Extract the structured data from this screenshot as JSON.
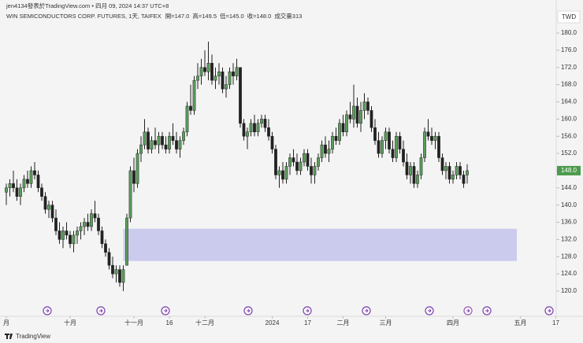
{
  "header": {
    "author_line": "jen4134發表於TradingView.com • 四月 09, 2024 14:37 UTC+8",
    "symbol": "WIN SEMICONDUCTORS CORP. FUTURES, 1天, TAIFEX",
    "ohlc": [
      "開=147.0",
      "高=149.5",
      "低=145.0",
      "收=148.0",
      "成交量313"
    ],
    "currency": "TWD",
    "brand": "TradingView"
  },
  "chart_data": {
    "type": "candlestick",
    "up_color": "#5b9e5b",
    "down_color": "#222222",
    "ylim": [
      118.5,
      183
    ],
    "yticks": [
      {
        "value": 120,
        "label": "120.0"
      },
      {
        "value": 124,
        "label": "124.0"
      },
      {
        "value": 128,
        "label": "128.0"
      },
      {
        "value": 132,
        "label": "132.0"
      },
      {
        "value": 136,
        "label": "136.0"
      },
      {
        "value": 140,
        "label": "140.0"
      },
      {
        "value": 144,
        "label": "144.0"
      },
      {
        "value": 148,
        "label": "148.0"
      },
      {
        "value": 152,
        "label": "152.0"
      },
      {
        "value": 156,
        "label": "156.0"
      },
      {
        "value": 160,
        "label": "160.0"
      },
      {
        "value": 164,
        "label": "164.0"
      },
      {
        "value": 168,
        "label": "168.0"
      },
      {
        "value": 172,
        "label": "172.0"
      },
      {
        "value": 176,
        "label": "176.0"
      },
      {
        "value": 180,
        "label": "180.0"
      }
    ],
    "xlim": [
      -0.5,
      154.5
    ],
    "xticks": [
      {
        "value": 0,
        "label": "月"
      },
      {
        "value": 18,
        "label": "十月"
      },
      {
        "value": 36,
        "label": "十一月"
      },
      {
        "value": 46,
        "label": "16"
      },
      {
        "value": 56,
        "label": "十二月"
      },
      {
        "value": 75,
        "label": "2024"
      },
      {
        "value": 85,
        "label": "17"
      },
      {
        "value": 95,
        "label": "二月"
      },
      {
        "value": 107,
        "label": "三月"
      },
      {
        "value": 126,
        "label": "四月"
      },
      {
        "value": 145,
        "label": "五月"
      },
      {
        "value": 155,
        "label": "17"
      }
    ],
    "last_price": {
      "value": 148,
      "label": "148.0",
      "color": "#4c9a4c"
    },
    "zone": {
      "top": 134.5,
      "bottom": 127,
      "start": 33,
      "end": 144,
      "color": "#cbcbee"
    },
    "candles": [
      [
        143,
        145,
        140,
        144
      ],
      [
        144,
        146,
        142,
        145
      ],
      [
        145,
        148,
        143,
        144
      ],
      [
        144,
        146,
        141,
        142
      ],
      [
        142,
        145,
        140,
        144
      ],
      [
        144,
        147,
        143,
        146
      ],
      [
        146,
        148,
        144,
        145
      ],
      [
        145,
        149,
        144,
        148
      ],
      [
        148,
        150,
        146,
        147
      ],
      [
        147,
        148,
        143,
        144
      ],
      [
        144,
        145,
        141,
        142
      ],
      [
        142,
        143,
        138,
        139
      ],
      [
        139,
        141,
        137,
        140
      ],
      [
        140,
        141,
        136,
        137
      ],
      [
        137,
        139,
        133,
        134
      ],
      [
        134,
        136,
        131,
        132
      ],
      [
        132,
        135,
        130,
        134
      ],
      [
        134,
        136,
        132,
        133
      ],
      [
        133,
        134,
        130,
        131
      ],
      [
        131,
        134,
        129,
        133
      ],
      [
        133,
        135,
        131,
        134
      ],
      [
        134,
        136,
        132,
        135
      ],
      [
        135,
        137,
        133,
        136
      ],
      [
        136,
        138,
        134,
        135
      ],
      [
        135,
        139,
        134,
        138
      ],
      [
        138,
        141,
        136,
        137
      ],
      [
        137,
        138,
        133,
        134
      ],
      [
        134,
        135,
        130,
        131
      ],
      [
        131,
        132,
        128,
        129
      ],
      [
        129,
        130,
        125,
        126
      ],
      [
        126,
        128,
        123,
        124
      ],
      [
        124,
        126,
        122,
        125
      ],
      [
        125,
        126,
        121,
        122
      ],
      [
        122,
        126,
        120,
        125
      ],
      [
        126,
        138,
        126,
        137
      ],
      [
        137,
        149,
        136,
        148
      ],
      [
        148,
        151,
        143,
        145
      ],
      [
        145,
        153,
        144,
        152
      ],
      [
        152,
        156,
        150,
        154
      ],
      [
        154,
        160,
        153,
        157
      ],
      [
        157,
        158,
        152,
        153
      ],
      [
        153,
        156,
        152,
        155
      ],
      [
        155,
        158,
        153,
        154
      ],
      [
        154,
        157,
        152,
        156
      ],
      [
        156,
        157,
        153,
        154
      ],
      [
        154,
        156,
        152,
        153
      ],
      [
        153,
        157,
        152,
        156
      ],
      [
        156,
        159,
        154,
        155
      ],
      [
        155,
        157,
        152,
        153
      ],
      [
        153,
        156,
        151,
        155
      ],
      [
        155,
        158,
        154,
        157
      ],
      [
        157,
        164,
        156,
        163
      ],
      [
        163,
        168,
        161,
        162
      ],
      [
        162,
        170,
        161,
        169
      ],
      [
        169,
        173,
        167,
        170
      ],
      [
        170,
        174,
        168,
        172
      ],
      [
        172,
        176,
        170,
        171
      ],
      [
        171,
        178,
        169,
        173
      ],
      [
        173,
        175,
        168,
        169
      ],
      [
        169,
        172,
        167,
        170
      ],
      [
        170,
        173,
        168,
        171
      ],
      [
        171,
        172,
        166,
        167
      ],
      [
        167,
        170,
        165,
        168
      ],
      [
        168,
        172,
        167,
        171
      ],
      [
        171,
        173,
        168,
        170
      ],
      [
        170,
        174,
        169,
        172
      ],
      [
        172,
        172,
        158,
        159
      ],
      [
        159,
        160,
        155,
        156
      ],
      [
        156,
        158,
        153,
        157
      ],
      [
        157,
        160,
        156,
        159
      ],
      [
        159,
        161,
        156,
        157
      ],
      [
        157,
        160,
        156,
        159
      ],
      [
        159,
        161,
        158,
        160
      ],
      [
        160,
        161,
        157,
        158
      ],
      [
        158,
        160,
        155,
        156
      ],
      [
        156,
        157,
        152,
        153
      ],
      [
        153,
        154,
        146,
        147
      ],
      [
        147,
        149,
        144,
        148
      ],
      [
        148,
        150,
        145,
        146
      ],
      [
        146,
        150,
        145,
        149
      ],
      [
        149,
        152,
        147,
        151
      ],
      [
        151,
        153,
        149,
        150
      ],
      [
        150,
        152,
        147,
        148
      ],
      [
        148,
        151,
        147,
        150
      ],
      [
        150,
        153,
        149,
        152
      ],
      [
        152,
        153,
        148,
        149
      ],
      [
        149,
        151,
        145,
        147
      ],
      [
        147,
        150,
        145,
        149
      ],
      [
        149,
        152,
        148,
        151
      ],
      [
        151,
        155,
        150,
        154
      ],
      [
        154,
        156,
        151,
        152
      ],
      [
        152,
        155,
        150,
        153
      ],
      [
        153,
        157,
        152,
        156
      ],
      [
        156,
        158,
        154,
        155
      ],
      [
        155,
        160,
        154,
        159
      ],
      [
        159,
        161,
        156,
        157
      ],
      [
        157,
        162,
        156,
        161
      ],
      [
        161,
        164,
        159,
        160
      ],
      [
        160,
        168,
        158,
        163
      ],
      [
        163,
        165,
        158,
        159
      ],
      [
        159,
        164,
        157,
        162
      ],
      [
        162,
        166,
        160,
        164
      ],
      [
        164,
        165,
        161,
        162
      ],
      [
        162,
        163,
        157,
        158
      ],
      [
        158,
        160,
        154,
        155
      ],
      [
        155,
        157,
        151,
        152
      ],
      [
        152,
        156,
        151,
        155
      ],
      [
        155,
        158,
        153,
        157
      ],
      [
        157,
        158,
        152,
        153
      ],
      [
        153,
        155,
        150,
        151
      ],
      [
        151,
        157,
        150,
        156
      ],
      [
        156,
        157,
        152,
        153
      ],
      [
        153,
        155,
        149,
        150
      ],
      [
        150,
        152,
        146,
        147
      ],
      [
        147,
        150,
        145,
        149
      ],
      [
        149,
        150,
        144,
        145
      ],
      [
        145,
        148,
        144,
        147
      ],
      [
        147,
        152,
        146,
        151
      ],
      [
        151,
        158,
        150,
        157
      ],
      [
        157,
        160,
        155,
        156
      ],
      [
        156,
        158,
        154,
        155
      ],
      [
        155,
        157,
        153,
        156
      ],
      [
        156,
        157,
        150,
        151
      ],
      [
        151,
        152,
        147,
        148
      ],
      [
        148,
        150,
        146,
        149
      ],
      [
        149,
        150,
        145,
        146
      ],
      [
        146,
        148,
        145,
        147
      ],
      [
        147,
        150,
        146,
        149
      ],
      [
        149,
        150,
        146,
        147
      ],
      [
        147,
        148,
        144,
        145
      ],
      [
        147,
        149.5,
        145,
        148
      ]
    ]
  }
}
